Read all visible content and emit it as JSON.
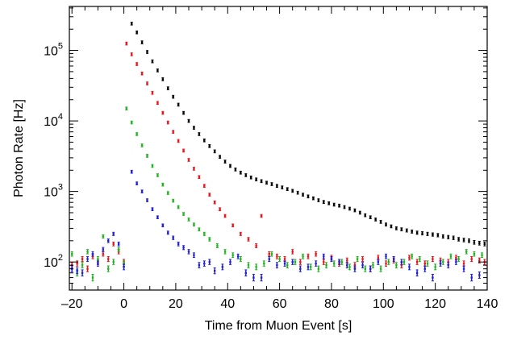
{
  "chart_data": {
    "type": "scatter",
    "title": "",
    "xlabel": "Time from Muon Event [s]",
    "ylabel": "Photon Rate [Hz]",
    "xlim": [
      -21,
      140
    ],
    "ylim": [
      40,
      420000
    ],
    "yscale": "log",
    "legend": "none",
    "grid": false,
    "x_ticks": [
      {
        "value": -20,
        "label": "–20"
      },
      {
        "value": 0,
        "label": "0"
      },
      {
        "value": 20,
        "label": "20"
      },
      {
        "value": 40,
        "label": "40"
      },
      {
        "value": 60,
        "label": "60"
      },
      {
        "value": 80,
        "label": "80"
      },
      {
        "value": 100,
        "label": "100"
      },
      {
        "value": 120,
        "label": "120"
      },
      {
        "value": 140,
        "label": "140"
      }
    ],
    "y_ticks": [
      {
        "value": 100,
        "base": "10",
        "exp": "2"
      },
      {
        "value": 1000,
        "base": "10",
        "exp": "3"
      },
      {
        "value": 10000,
        "base": "10",
        "exp": "4"
      },
      {
        "value": 100000,
        "base": "10",
        "exp": "5"
      }
    ],
    "series": [
      {
        "color": "#000000",
        "x": [
          3,
          5,
          7,
          9,
          11,
          13,
          15,
          17,
          19,
          21,
          23,
          25,
          27,
          29,
          31,
          33,
          35,
          37,
          39,
          41,
          43,
          45,
          47,
          49,
          51,
          53,
          55,
          57,
          59,
          61,
          63,
          65,
          67,
          69,
          71,
          73,
          75,
          77,
          79,
          81,
          83,
          85,
          87,
          89,
          91,
          93,
          95,
          97,
          99,
          101,
          103,
          105,
          107,
          109,
          111,
          113,
          115,
          117,
          119,
          121,
          123,
          125,
          127,
          129,
          131,
          133,
          135,
          137,
          139
        ],
        "y": [
          240000,
          180000,
          130000,
          95000,
          70000,
          52000,
          39000,
          29000,
          22000,
          17000,
          13000,
          10000,
          8000,
          6500,
          5300,
          4400,
          3700,
          3100,
          2650,
          2300,
          2050,
          1850,
          1700,
          1580,
          1480,
          1400,
          1330,
          1270,
          1200,
          1140,
          1080,
          1020,
          960,
          900,
          850,
          800,
          750,
          710,
          680,
          650,
          630,
          600,
          570,
          540,
          500,
          460,
          430,
          400,
          370,
          340,
          320,
          300,
          290,
          280,
          270,
          260,
          255,
          250,
          245,
          240,
          230,
          225,
          220,
          210,
          205,
          200,
          190,
          185,
          180
        ]
      },
      {
        "color": "#e8141a",
        "x": [
          -20,
          -18,
          -16,
          -14,
          -12,
          -10,
          -8,
          -6,
          -4,
          -2,
          0,
          1,
          3,
          5,
          7,
          9,
          11,
          13,
          15,
          17,
          19,
          21,
          23,
          25,
          27,
          29,
          31,
          33,
          35,
          37,
          39,
          42,
          45,
          48,
          51,
          53,
          56,
          59,
          62,
          65,
          68,
          71,
          74,
          77,
          80,
          83,
          86,
          89,
          92,
          95,
          98,
          101,
          104,
          107,
          110,
          113,
          116,
          119,
          122,
          125,
          128,
          131,
          134,
          137,
          139
        ],
        "y": [
          90,
          95,
          110,
          80,
          120,
          100,
          130,
          110,
          180,
          140,
          100,
          125000,
          88000,
          64000,
          47000,
          34000,
          25000,
          18000,
          13000,
          9500,
          7000,
          5200,
          3800,
          2800,
          2100,
          1600,
          1200,
          900,
          700,
          560,
          450,
          330,
          250,
          210,
          170,
          450,
          130,
          120,
          110,
          140,
          100,
          120,
          130,
          100,
          115,
          95,
          105,
          90,
          110,
          80,
          115,
          95,
          105,
          90,
          115,
          100,
          95,
          110,
          105,
          100,
          115,
          95,
          110,
          105,
          100
        ]
      },
      {
        "color": "#1fb41f",
        "x": [
          -20,
          -18,
          -16,
          -14,
          -12,
          -10,
          -8,
          -6,
          -4,
          -2,
          0,
          1,
          3,
          5,
          7,
          9,
          11,
          13,
          15,
          17,
          19,
          21,
          23,
          25,
          27,
          29,
          31,
          33,
          36,
          39,
          42,
          45,
          48,
          51,
          54,
          57,
          60,
          63,
          66,
          69,
          72,
          75,
          78,
          81,
          84,
          87,
          90,
          93,
          96,
          99,
          102,
          105,
          108,
          111,
          114,
          117,
          120,
          123,
          126,
          129,
          132,
          135,
          138
        ],
        "y": [
          130,
          70,
          90,
          140,
          60,
          110,
          230,
          80,
          100,
          150,
          95,
          15000,
          9500,
          6500,
          4500,
          3200,
          2300,
          1700,
          1250,
          950,
          740,
          600,
          480,
          400,
          340,
          290,
          250,
          210,
          170,
          140,
          125,
          110,
          90,
          85,
          95,
          130,
          110,
          90,
          100,
          120,
          85,
          80,
          90,
          95,
          100,
          85,
          110,
          80,
          90,
          80,
          100,
          90,
          100,
          120,
          110,
          95,
          85,
          100,
          120,
          110,
          140,
          130,
          125
        ]
      },
      {
        "color": "#1f1fd8",
        "x": [
          -20,
          -18,
          -16,
          -14,
          -12,
          -10,
          -8,
          -6,
          -4,
          -2,
          0,
          3,
          5,
          7,
          9,
          11,
          13,
          15,
          17,
          19,
          21,
          23,
          25,
          27,
          29,
          31,
          33,
          35,
          38,
          41,
          44,
          47,
          50,
          53,
          56,
          59,
          62,
          65,
          68,
          71,
          74,
          77,
          80,
          83,
          86,
          89,
          92,
          95,
          98,
          101,
          104,
          107,
          110,
          113,
          116,
          119,
          122,
          125,
          128,
          131,
          134,
          137
        ],
        "y": [
          80,
          75,
          70,
          110,
          130,
          95,
          150,
          200,
          250,
          180,
          85,
          1900,
          1300,
          1000,
          750,
          560,
          430,
          330,
          260,
          220,
          180,
          160,
          140,
          125,
          90,
          95,
          100,
          75,
          85,
          100,
          120,
          70,
          60,
          60,
          110,
          90,
          95,
          100,
          80,
          85,
          95,
          120,
          110,
          100,
          90,
          80,
          90,
          80,
          100,
          120,
          110,
          100,
          85,
          70,
          80,
          60,
          95,
          90,
          100,
          80,
          60,
          65
        ]
      }
    ]
  }
}
